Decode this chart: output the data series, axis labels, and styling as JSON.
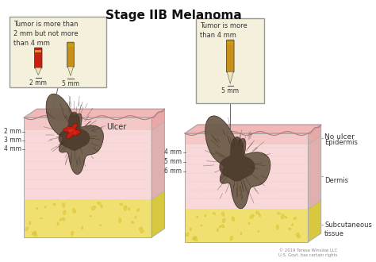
{
  "title": "Stage IIB Melanoma",
  "title_fontsize": 11,
  "background_color": "#ffffff",
  "left_box_text": "Tumor is more than\n2 mm but not more\nthan 4 mm",
  "right_box_text": "Tumor is more\nthan 4 mm",
  "left_labels_left": [
    "2 mm",
    "3 mm",
    "4 mm"
  ],
  "right_labels_left": [
    "4 mm",
    "5 mm",
    "6 mm"
  ],
  "right_labels_right": [
    "No ulcer",
    "Epidermis",
    "Dermis",
    "Subcutaneous\ntissue"
  ],
  "left_pencil_labels": [
    "2 mm",
    "5 mm"
  ],
  "right_pencil_labels": [
    "5 mm"
  ],
  "copyright": "© 2019 Terese Winslow LLC\nU.S. Govt. has certain rights",
  "skin_top": "#f2b8b8",
  "skin_front": "#f5c8c8",
  "skin_side": "#e8a8a8",
  "dermis_front": "#f8d8d8",
  "dermis_top": "#f0c8c8",
  "dermis_side": "#e0b0b0",
  "fat_front": "#f0e070",
  "fat_top": "#e8d850",
  "fat_side": "#d8c840",
  "fat_cell_color": "#e0c830",
  "tumor_base": "#6b5a48",
  "tumor_mid": "#4a3828",
  "tumor_dark": "#2e2018",
  "ulcer_red": "#c42010",
  "ulcer_bright": "#e83020",
  "box_bg": "#f5f0dc",
  "box_border": "#888888",
  "pencil_red_body": "#c82010",
  "pencil_gold_body": "#c89018",
  "pencil_tip": "#f0e8b0",
  "pencil_band": "#c8a010",
  "line_color": "#555555",
  "label_color": "#333333",
  "wavy_color": "#c07878"
}
